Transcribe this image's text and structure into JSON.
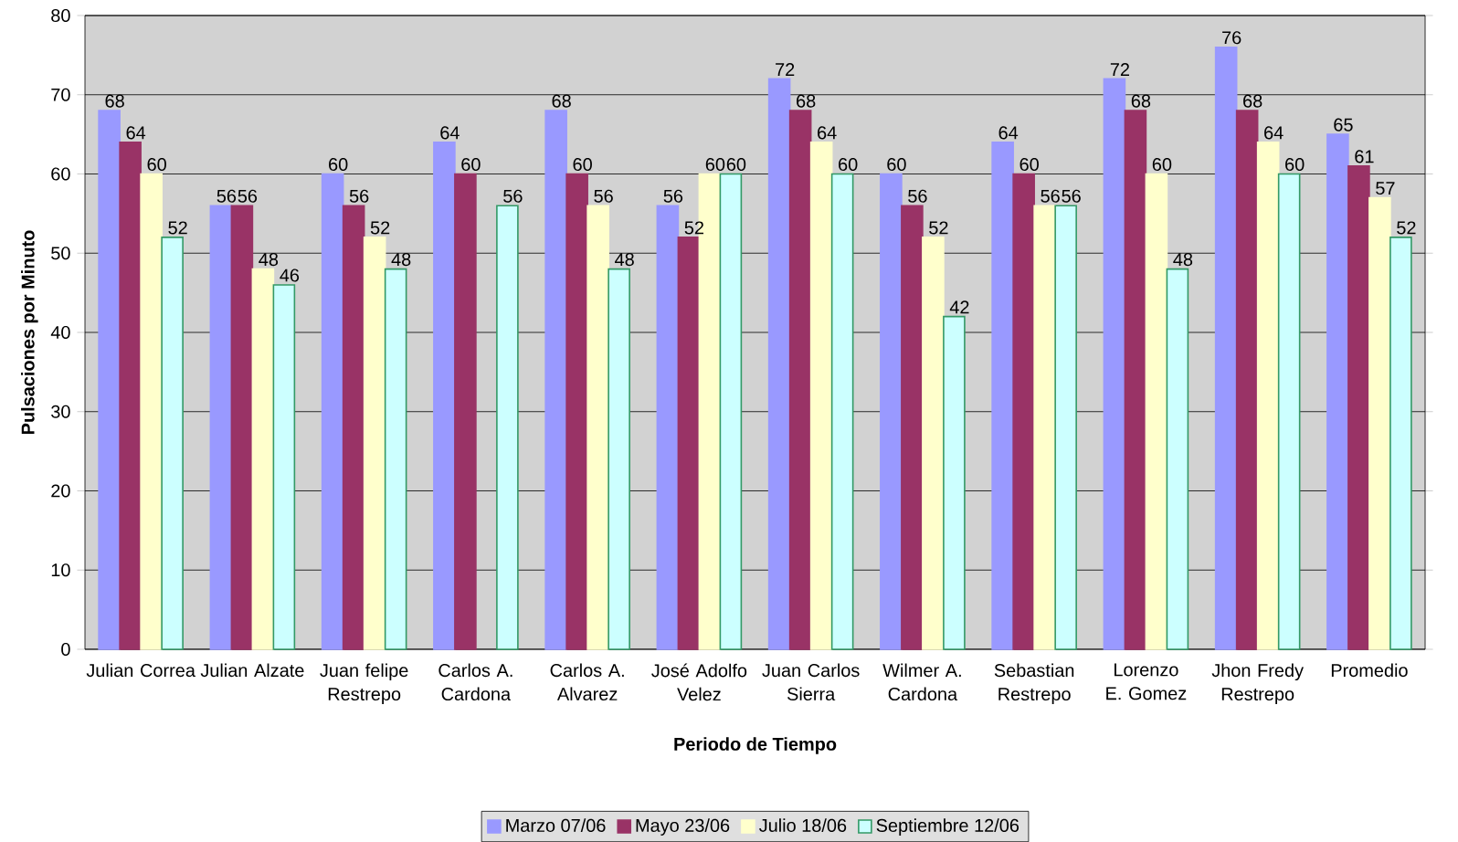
{
  "chart_data": {
    "type": "bar",
    "xlabel": "Periodo de Tiempo",
    "ylabel": "Pulsaciones por Minuto",
    "categories": [
      "Julian Correa",
      "Julian Alzate",
      "Juan felipe Restrepo",
      "Carlos A. Cardona",
      "Carlos A. Alvarez",
      "José Adolfo Velez",
      "Juan Carlos Sierra",
      "Wilmer A. Cardona",
      "Sebastian Restrepo",
      "Lorenzo E. Gomez",
      "Jhon Fredy Restrepo",
      "Promedio"
    ],
    "series": [
      {
        "name": "Marzo 07/06",
        "color": "#9999ff",
        "values": [
          68,
          56,
          60,
          64,
          68,
          56,
          72,
          60,
          64,
          72,
          76,
          65
        ]
      },
      {
        "name": "Mayo 23/06",
        "color": "#993366",
        "values": [
          64,
          56,
          56,
          60,
          60,
          52,
          68,
          56,
          60,
          68,
          68,
          61
        ]
      },
      {
        "name": "Julio 18/06",
        "color": "#ffffcc",
        "values": [
          60,
          48,
          52,
          null,
          56,
          60,
          64,
          52,
          56,
          60,
          64,
          57
        ]
      },
      {
        "name": "Septiembre 12/06",
        "color": "#ccffff",
        "values": [
          52,
          46,
          48,
          56,
          48,
          60,
          60,
          42,
          56,
          48,
          60,
          52
        ]
      }
    ],
    "ylim": [
      0,
      80
    ],
    "yticks": [
      0,
      10,
      20,
      30,
      40,
      50,
      60,
      70,
      80
    ],
    "grid": "y",
    "legend": "bottom",
    "data_labels": true
  }
}
